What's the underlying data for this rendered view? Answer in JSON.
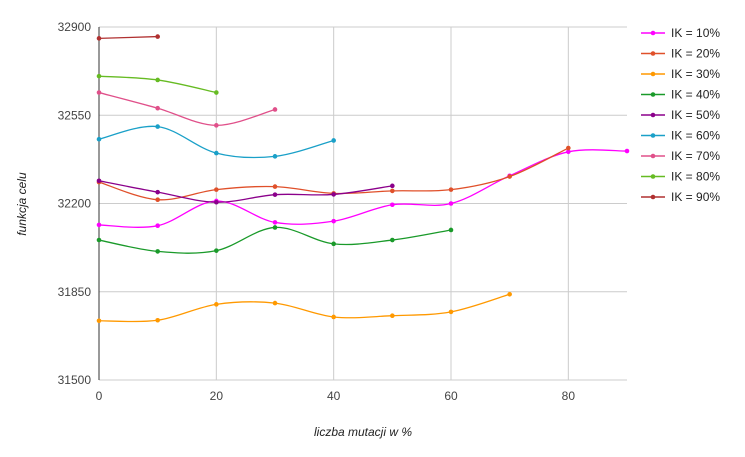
{
  "chart_data": {
    "type": "line",
    "xlabel": "liczba mutacji w %",
    "ylabel": "funkcja celu",
    "xlim": [
      0,
      90
    ],
    "ylim": [
      31500,
      32900
    ],
    "xticks": [
      "0",
      "20",
      "40",
      "60",
      "80"
    ],
    "yticks": [
      "31500",
      "31850",
      "32200",
      "32550",
      "32900"
    ],
    "grid": true,
    "legend_position": "right",
    "series": [
      {
        "name": "IK = 10%",
        "color": "#ff00ff",
        "x": [
          0,
          10,
          20,
          30,
          40,
          50,
          60,
          70,
          80,
          90
        ],
        "y": [
          32115,
          32112,
          32210,
          32125,
          32130,
          32195,
          32200,
          32310,
          32405,
          32408
        ]
      },
      {
        "name": "IK = 20%",
        "color": "#e0502a",
        "x": [
          0,
          10,
          20,
          30,
          40,
          50,
          60,
          70,
          80
        ],
        "y": [
          32285,
          32215,
          32255,
          32267,
          32240,
          32250,
          32255,
          32307,
          32420
        ]
      },
      {
        "name": "IK = 30%",
        "color": "#ff9900",
        "x": [
          0,
          10,
          20,
          30,
          40,
          50,
          60,
          70
        ],
        "y": [
          31735,
          31737,
          31800,
          31805,
          31750,
          31755,
          31770,
          31840
        ]
      },
      {
        "name": "IK = 40%",
        "color": "#1a9a2a",
        "x": [
          0,
          10,
          20,
          30,
          40,
          50,
          60
        ],
        "y": [
          32055,
          32010,
          32013,
          32105,
          32040,
          32055,
          32095
        ]
      },
      {
        "name": "IK = 50%",
        "color": "#8b008b",
        "x": [
          0,
          10,
          20,
          30,
          40,
          50
        ],
        "y": [
          32290,
          32245,
          32205,
          32235,
          32236,
          32270
        ]
      },
      {
        "name": "IK = 60%",
        "color": "#1aa0c8",
        "x": [
          0,
          10,
          20,
          30,
          40
        ],
        "y": [
          32455,
          32505,
          32400,
          32387,
          32450
        ]
      },
      {
        "name": "IK = 70%",
        "color": "#e0508a",
        "x": [
          0,
          10,
          20,
          30
        ],
        "y": [
          32640,
          32578,
          32510,
          32573
        ]
      },
      {
        "name": "IK = 80%",
        "color": "#66bb22",
        "x": [
          0,
          10,
          20
        ],
        "y": [
          32705,
          32690,
          32640
        ]
      },
      {
        "name": "IK = 90%",
        "color": "#b03030",
        "x": [
          0,
          10
        ],
        "y": [
          32855,
          32862
        ]
      }
    ]
  }
}
